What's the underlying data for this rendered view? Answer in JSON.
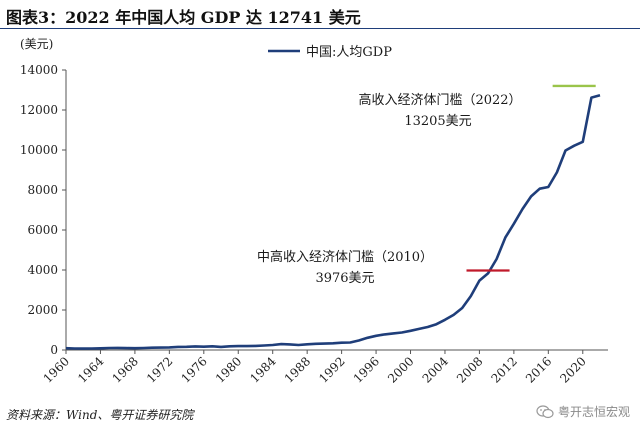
{
  "header": {
    "title": "图表3：2022 年中国人均 GDP 达 12741 美元"
  },
  "footer": {
    "source": "资料来源：Wind、粤开证券研究院"
  },
  "watermark": {
    "text": "粤开志恒宏观",
    "icon": "wechat-icon"
  },
  "chart_data": {
    "type": "line",
    "title": "",
    "xlabel": "",
    "ylabel": "(美元)",
    "xlim": [
      1960,
      2022
    ],
    "ylim": [
      0,
      14000
    ],
    "yticks": [
      0,
      2000,
      4000,
      6000,
      8000,
      10000,
      12000,
      14000
    ],
    "xticks": [
      1960,
      1964,
      1968,
      1972,
      1976,
      1980,
      1984,
      1988,
      1992,
      1996,
      2000,
      2004,
      2008,
      2012,
      2016,
      2020
    ],
    "grid": false,
    "legend_position": "top-center",
    "series": [
      {
        "name": "中国:人均GDP",
        "color": "#1f3e7a",
        "x": [
          1960,
          1961,
          1962,
          1963,
          1964,
          1965,
          1966,
          1967,
          1968,
          1969,
          1970,
          1971,
          1972,
          1973,
          1974,
          1975,
          1976,
          1977,
          1978,
          1979,
          1980,
          1981,
          1982,
          1983,
          1984,
          1985,
          1986,
          1987,
          1988,
          1989,
          1990,
          1991,
          1992,
          1993,
          1994,
          1995,
          1996,
          1997,
          1998,
          1999,
          2000,
          2001,
          2002,
          2003,
          2004,
          2005,
          2006,
          2007,
          2008,
          2009,
          2010,
          2011,
          2012,
          2013,
          2014,
          2015,
          2016,
          2017,
          2018,
          2019,
          2020,
          2021,
          2022
        ],
        "values": [
          90,
          76,
          71,
          74,
          85,
          98,
          104,
          97,
          91,
          100,
          113,
          119,
          132,
          157,
          160,
          178,
          165,
          185,
          156,
          184,
          195,
          197,
          203,
          225,
          250,
          294,
          281,
          251,
          284,
          311,
          318,
          333,
          366,
          377,
          473,
          609,
          709,
          782,
          828,
          873,
          959,
          1053,
          1149,
          1289,
          1509,
          1753,
          2099,
          2694,
          3468,
          3832,
          4550,
          5618,
          6317,
          7051,
          7679,
          8067,
          8148,
          8879,
          9977,
          10217,
          10409,
          12618,
          12741
        ]
      }
    ],
    "annotations": [
      {
        "label_line1": "中高收入经济体门槛（2010）",
        "label_line2": "3976美元",
        "threshold": 3976,
        "x_start": 2006.5,
        "x_end": 2011.5,
        "color": "#c0192a"
      },
      {
        "label_line1": "高收入经济体门槛（2022）",
        "label_line2": "13205美元",
        "threshold": 13205,
        "x_start": 2016.5,
        "x_end": 2021.5,
        "color": "#9ac44a"
      }
    ]
  }
}
